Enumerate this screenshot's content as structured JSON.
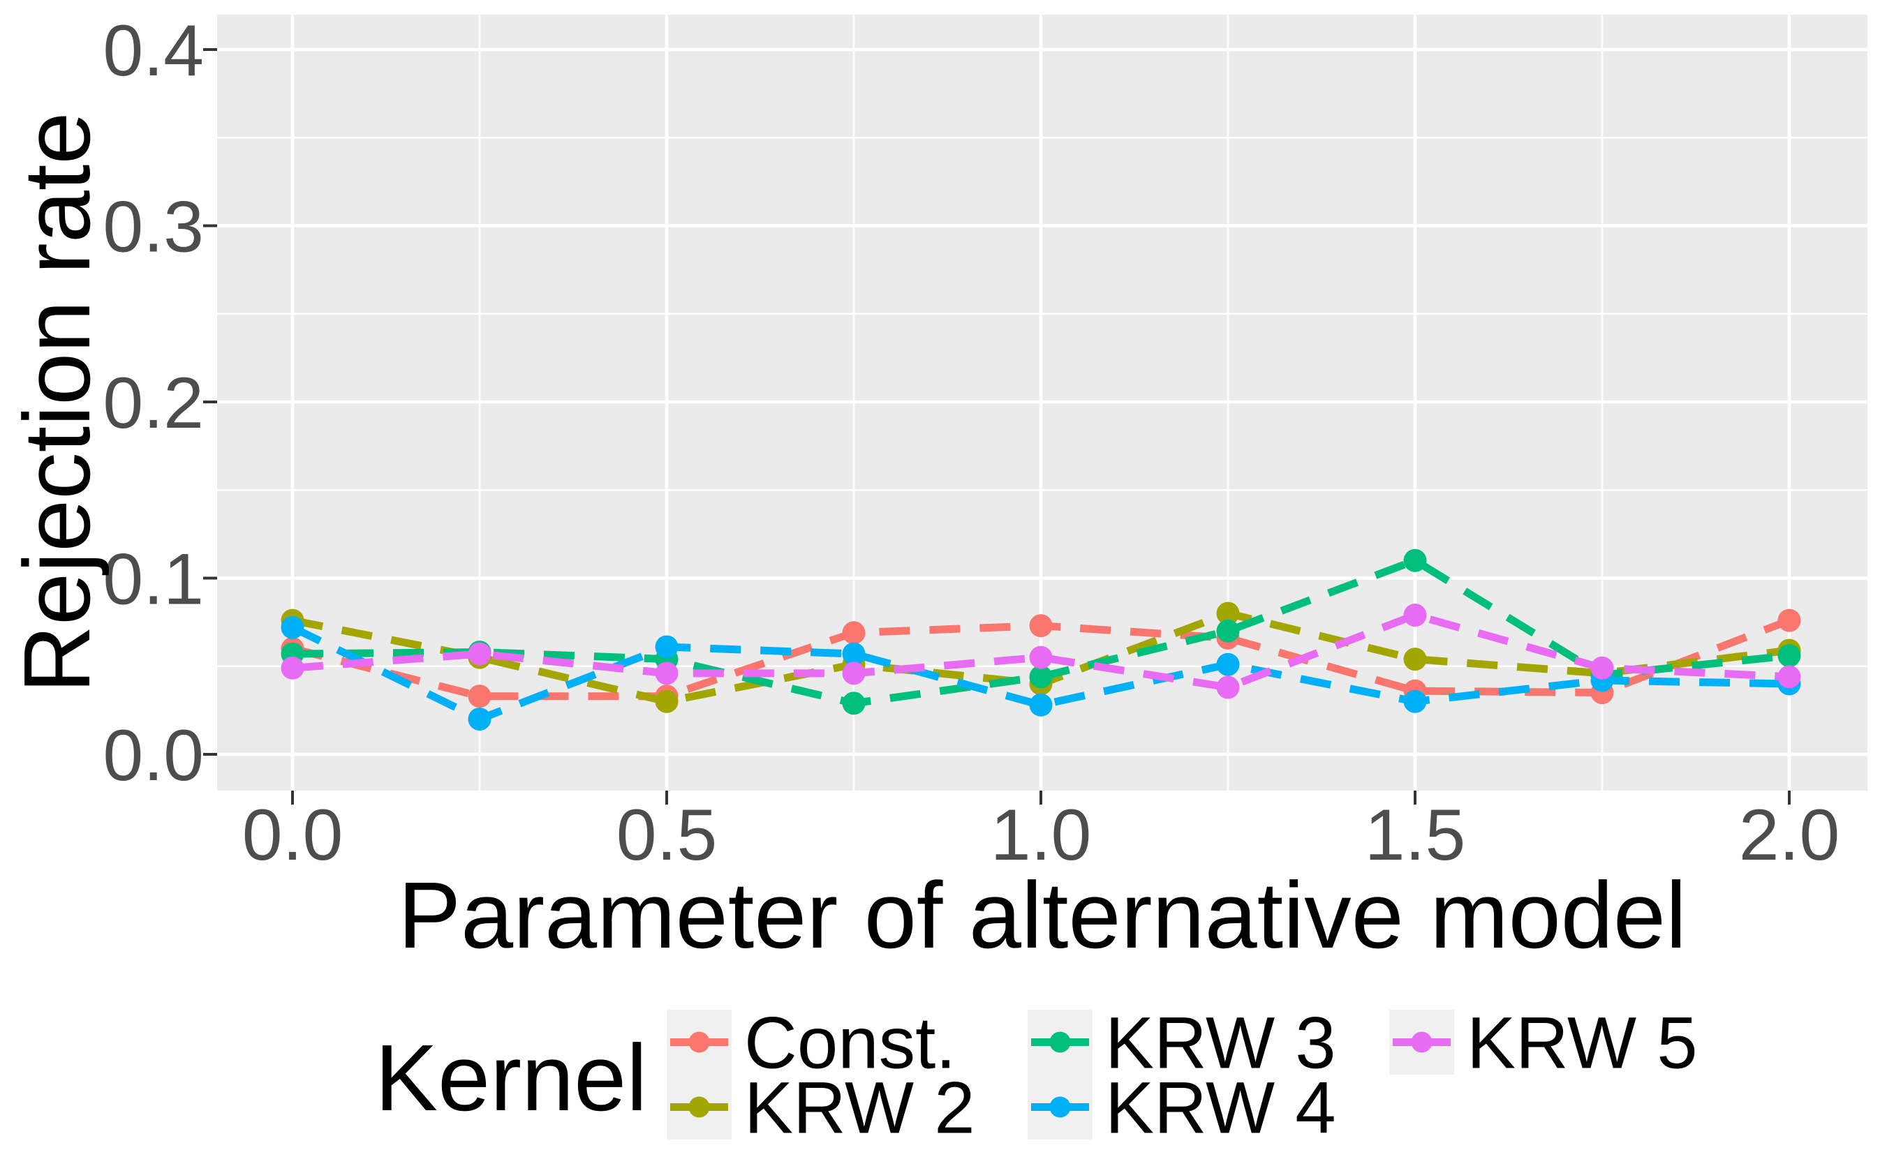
{
  "figure": {
    "background": "#FFFFFF",
    "panel_fill": "#EBEBEB",
    "grid_color": "#FFFFFF",
    "tick_color": "#333333",
    "tick_label_color": "#4D4D4D",
    "title_color": "#000000",
    "legend_key_fill": "#F0F0F0"
  },
  "axes": {
    "x": {
      "title": "Parameter of alternative model",
      "ticks": [
        0.0,
        0.5,
        1.0,
        1.5,
        2.0
      ],
      "tick_labels": [
        "0.0",
        "0.5",
        "1.0",
        "1.5",
        "2.0"
      ],
      "minor_ticks": [
        0.25,
        0.75,
        1.25,
        1.75
      ]
    },
    "y": {
      "title": "Rejection rate",
      "ticks": [
        0.0,
        0.1,
        0.2,
        0.3,
        0.4
      ],
      "tick_labels": [
        "0.0",
        "0.1",
        "0.2",
        "0.3",
        "0.4"
      ],
      "minor_ticks": [
        0.05,
        0.15,
        0.25,
        0.35
      ]
    }
  },
  "legend": {
    "title": "Kernel",
    "position": "bottom",
    "entries": [
      {
        "label": "Const.",
        "color": "#F8766D",
        "col": 0,
        "row": 0
      },
      {
        "label": "KRW 2",
        "color": "#A3A500",
        "col": 0,
        "row": 1
      },
      {
        "label": "KRW 3",
        "color": "#00BF7D",
        "col": 1,
        "row": 0
      },
      {
        "label": "KRW 4",
        "color": "#00B0F6",
        "col": 1,
        "row": 1
      },
      {
        "label": "KRW 5",
        "color": "#E76BF3",
        "col": 2,
        "row": 0
      }
    ]
  },
  "chart_data": {
    "type": "line",
    "title": "",
    "xlabel": "Parameter of alternative model",
    "ylabel": "Rejection rate",
    "x": [
      0.0,
      0.25,
      0.5,
      0.75,
      1.0,
      1.25,
      1.5,
      1.75,
      2.0
    ],
    "series": [
      {
        "name": "Const.",
        "color": "#F8766D",
        "values": [
          0.06,
          0.033,
          0.033,
          0.069,
          0.073,
          0.066,
          0.036,
          0.035,
          0.076
        ]
      },
      {
        "name": "KRW 2",
        "color": "#A3A500",
        "values": [
          0.076,
          0.055,
          0.03,
          0.051,
          0.04,
          0.08,
          0.054,
          0.046,
          0.059
        ]
      },
      {
        "name": "KRW 3",
        "color": "#00BF7D",
        "values": [
          0.057,
          0.058,
          0.054,
          0.029,
          0.044,
          0.07,
          0.11,
          0.045,
          0.056
        ]
      },
      {
        "name": "KRW 4",
        "color": "#00B0F6",
        "values": [
          0.072,
          0.02,
          0.061,
          0.057,
          0.028,
          0.051,
          0.03,
          0.042,
          0.04
        ]
      },
      {
        "name": "KRW 5",
        "color": "#E76BF3",
        "values": [
          0.049,
          0.057,
          0.046,
          0.046,
          0.055,
          0.038,
          0.079,
          0.049,
          0.044
        ]
      }
    ],
    "xlim": [
      0.0,
      2.0
    ],
    "ylim": [
      0.0,
      0.4
    ],
    "grid": true,
    "legend_position": "bottom",
    "line_style": "dashed",
    "marker": "circle"
  }
}
